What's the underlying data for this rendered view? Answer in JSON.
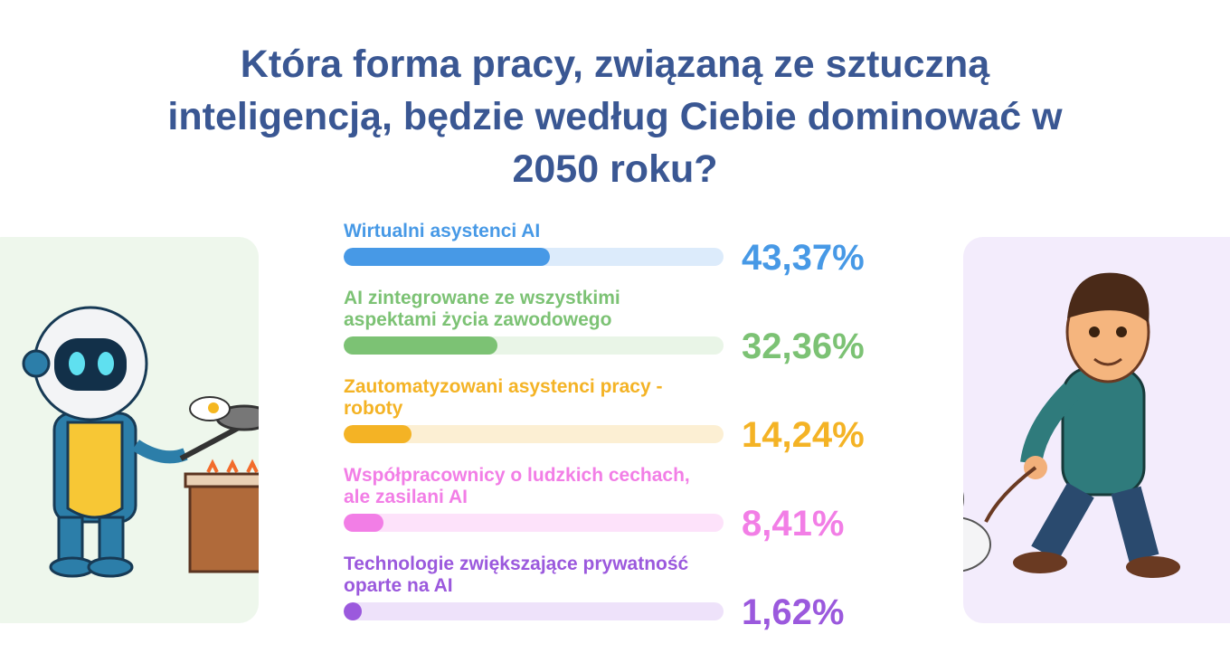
{
  "chart_data": {
    "type": "bar",
    "title": "Która forma pracy, związaną ze sztuczną inteligencją, będzie według Ciebie dominować w 2050 roku?",
    "categories": [
      "Wirtualni asystenci AI",
      "AI zintegrowane ze wszystkimi aspektami życia zawodowego",
      "Zautomatyzowani asystenci pracy - roboty",
      "Współpracownicy o ludzkich cechach, ale zasilani AI",
      "Technologie zwiększające prywatność oparte na AI"
    ],
    "series": [
      {
        "values": [
          43.37,
          32.36,
          14.24,
          8.41,
          1.62
        ],
        "value_labels": [
          "43,37%",
          "32,36%",
          "14,24%",
          "8,41%",
          "1,62%"
        ],
        "colors": [
          "#4799e6",
          "#7cc274",
          "#f4b325",
          "#f27ee6",
          "#9b59dd"
        ],
        "track_colors": [
          "#dcebfb",
          "#e9f5e7",
          "#fcefd3",
          "#fde2fa",
          "#eee2fa"
        ]
      }
    ],
    "xlim": [
      0,
      80
    ]
  }
}
